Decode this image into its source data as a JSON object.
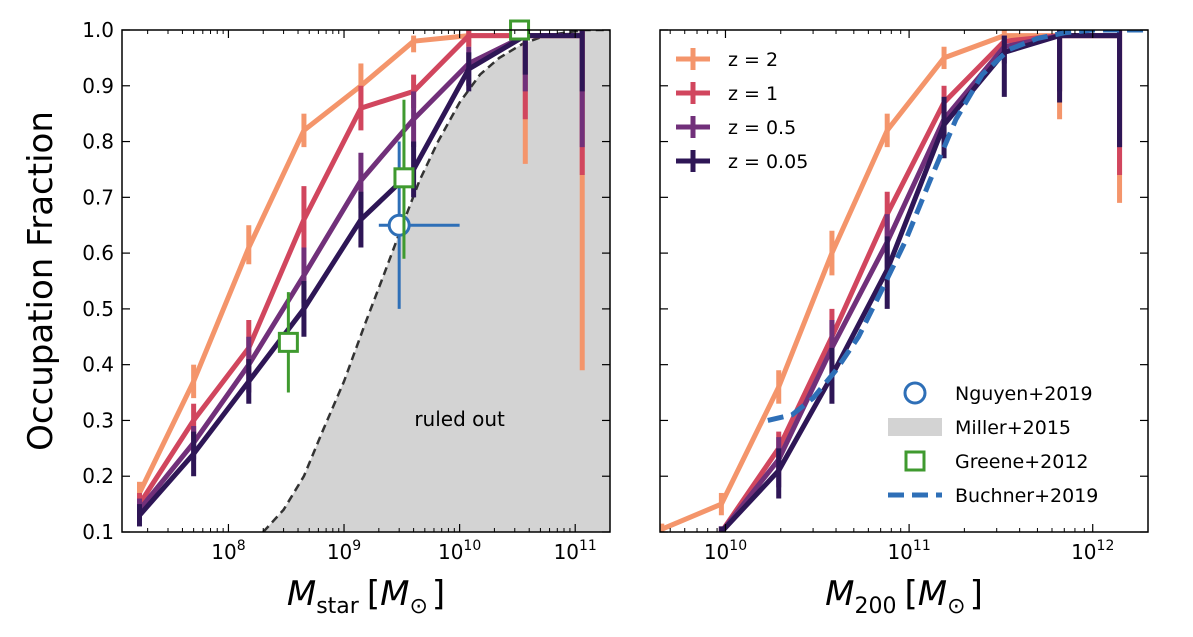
{
  "ylabel": "Occupation Fraction",
  "chart_data": [
    {
      "type": "line",
      "xlabel_main": "M",
      "xlabel_sub": "star",
      "xlabel_unit_open": "[",
      "xlabel_unit_main": "M",
      "xlabel_unit_sub": "⊙",
      "xlabel_unit_close": "]",
      "xscale": "log",
      "xlim": [
        12000000.0,
        200000000000.0
      ],
      "ylim": [
        0.1,
        1.0
      ],
      "x_tick_labels": [
        {
          "value": 100000000.0,
          "base": "10",
          "exp": "8"
        },
        {
          "value": 1000000000.0,
          "base": "10",
          "exp": "9"
        },
        {
          "value": 10000000000.0,
          "base": "10",
          "exp": "10"
        },
        {
          "value": 100000000000.0,
          "base": "10",
          "exp": "11"
        }
      ],
      "y_ticks": [
        0.1,
        0.2,
        0.3,
        0.4,
        0.5,
        0.6,
        0.7,
        0.8,
        0.9,
        1.0
      ],
      "y_tick_labels": [
        "0.1",
        "0.2",
        "0.3",
        "0.4",
        "0.5",
        "0.6",
        "0.7",
        "0.8",
        "0.9",
        "1.0"
      ],
      "series": [
        {
          "name": "z = 2",
          "color": "#f4956b",
          "x": [
            17000000.0,
            50000000.0,
            150000000.0,
            450000000.0,
            1400000000.0,
            4000000000.0,
            12000000000.0,
            37000000000.0,
            115000000000.0
          ],
          "y": [
            0.17,
            0.37,
            0.61,
            0.82,
            0.9,
            0.98,
            0.99,
            0.99,
            0.99
          ],
          "err_lo": [
            0.02,
            0.03,
            0.03,
            0.03,
            0.03,
            0.02,
            0.02,
            0.23,
            0.6
          ],
          "err_hi": [
            0.02,
            0.03,
            0.04,
            0.03,
            0.04,
            0.01,
            0.01,
            0.01,
            0.01
          ]
        },
        {
          "name": "z = 1",
          "color": "#d1465e",
          "x": [
            17000000.0,
            50000000.0,
            150000000.0,
            450000000.0,
            1400000000.0,
            4000000000.0,
            12000000000.0,
            37000000000.0,
            115000000000.0
          ],
          "y": [
            0.15,
            0.3,
            0.43,
            0.66,
            0.86,
            0.89,
            0.99,
            0.99,
            0.99
          ],
          "err_lo": [
            0.02,
            0.03,
            0.05,
            0.05,
            0.04,
            0.03,
            0.02,
            0.15,
            0.25
          ],
          "err_hi": [
            0.02,
            0.03,
            0.05,
            0.06,
            0.04,
            0.03,
            0.01,
            0.01,
            0.01
          ]
        },
        {
          "name": "z = 0.5",
          "color": "#71307a",
          "x": [
            17000000.0,
            50000000.0,
            150000000.0,
            450000000.0,
            1400000000.0,
            4000000000.0,
            12000000000.0,
            37000000000.0,
            115000000000.0
          ],
          "y": [
            0.14,
            0.26,
            0.4,
            0.56,
            0.73,
            0.84,
            0.94,
            0.99,
            0.99
          ],
          "err_lo": [
            0.02,
            0.03,
            0.05,
            0.05,
            0.05,
            0.05,
            0.04,
            0.1,
            0.2
          ],
          "err_hi": [
            0.02,
            0.03,
            0.05,
            0.05,
            0.05,
            0.05,
            0.03,
            0.01,
            0.01
          ]
        },
        {
          "name": "z = 0.05",
          "color": "#2e1656",
          "x": [
            17000000.0,
            50000000.0,
            150000000.0,
            450000000.0,
            1400000000.0,
            4000000000.0,
            12000000000.0,
            37000000000.0,
            115000000000.0
          ],
          "y": [
            0.13,
            0.24,
            0.37,
            0.5,
            0.66,
            0.75,
            0.93,
            0.99,
            0.99
          ],
          "err_lo": [
            0.02,
            0.04,
            0.04,
            0.05,
            0.05,
            0.05,
            0.04,
            0.07,
            0.1
          ],
          "err_hi": [
            0.02,
            0.04,
            0.04,
            0.05,
            0.05,
            0.05,
            0.03,
            0.01,
            0.01
          ]
        }
      ],
      "shaded_region": {
        "name": "Miller+2015",
        "color": "#d3d3d3",
        "boundary_color": "#333333",
        "x": [
          200000000.0,
          300000000.0,
          450000000.0,
          650000000.0,
          1000000000.0,
          1500000000.0,
          2200000000.0,
          3200000000.0,
          4500000000.0,
          6500000000.0,
          10000000000.0,
          15000000000.0,
          22000000000.0,
          35000000000.0,
          55000000000.0,
          80000000000.0,
          120000000000.0,
          200000000000.0
        ],
        "y": [
          0.1,
          0.14,
          0.2,
          0.28,
          0.37,
          0.47,
          0.56,
          0.65,
          0.73,
          0.8,
          0.87,
          0.92,
          0.95,
          0.975,
          0.99,
          0.995,
          1.0,
          1.0
        ]
      },
      "nguyen": {
        "name": "Nguyen+2019",
        "color": "#2e6fb7",
        "x": 3000000000.0,
        "y": 0.65,
        "xerr_lo": 2000000000.0,
        "xerr_hi": 10000000000.0,
        "yerr_lo": 0.5,
        "yerr_hi": 0.8
      },
      "greene": {
        "name": "Greene+2012",
        "color": "#3f9a2f",
        "points": [
          {
            "x": 330000000.0,
            "y": 0.44,
            "ylo": 0.35,
            "yhi": 0.53
          },
          {
            "x": 3300000000.0,
            "y": 0.735,
            "ylo": 0.59,
            "yhi": 0.875
          },
          {
            "x": 33000000000.0,
            "y": 1.0,
            "ylo": 0.99,
            "yhi": 1.0
          }
        ]
      },
      "annotations": [
        {
          "text": "ruled out",
          "x": 10000000000.0,
          "y": 0.29
        }
      ]
    },
    {
      "type": "line",
      "xlabel_main": "M",
      "xlabel_sub": "200",
      "xlabel_unit_open": "[",
      "xlabel_unit_main": "M",
      "xlabel_unit_sub": "⊙",
      "xlabel_unit_close": "]",
      "xscale": "log",
      "xlim": [
        4400000000.0,
        2000000000000.0
      ],
      "ylim": [
        0.1,
        1.0
      ],
      "x_tick_labels": [
        {
          "value": 10000000000.0,
          "base": "10",
          "exp": "10"
        },
        {
          "value": 100000000000.0,
          "base": "10",
          "exp": "11"
        },
        {
          "value": 1000000000000.0,
          "base": "10",
          "exp": "12"
        }
      ],
      "y_ticks": [
        0.1,
        0.2,
        0.3,
        0.4,
        0.5,
        0.6,
        0.7,
        0.8,
        0.9,
        1.0
      ],
      "series": [
        {
          "name": "z = 2",
          "color": "#f4956b",
          "x": [
            4500000000.0,
            9500000000.0,
            19500000000.0,
            38000000000.0,
            76000000000.0,
            155000000000.0,
            330000000000.0,
            660000000000.0,
            1400000000000.0
          ],
          "y": [
            0.105,
            0.15,
            0.36,
            0.6,
            0.82,
            0.95,
            0.99,
            0.99,
            0.99
          ],
          "err_lo": [
            0.01,
            0.02,
            0.03,
            0.04,
            0.03,
            0.02,
            0.01,
            0.15,
            0.3
          ],
          "err_hi": [
            0.01,
            0.02,
            0.03,
            0.04,
            0.03,
            0.02,
            0.01,
            0.01,
            0.01
          ]
        },
        {
          "name": "z = 1",
          "color": "#d1465e",
          "x": [
            9500000000.0,
            19500000000.0,
            38000000000.0,
            76000000000.0,
            155000000000.0,
            330000000000.0,
            660000000000.0,
            1400000000000.0
          ],
          "y": [
            0.1,
            0.25,
            0.45,
            0.67,
            0.87,
            0.98,
            0.99,
            0.99
          ],
          "err_lo": [
            0.01,
            0.04,
            0.05,
            0.04,
            0.04,
            0.02,
            0.1,
            0.25
          ],
          "err_hi": [
            0.01,
            0.03,
            0.05,
            0.04,
            0.03,
            0.01,
            0.01,
            0.01
          ]
        },
        {
          "name": "z = 0.5",
          "color": "#71307a",
          "x": [
            9500000000.0,
            19500000000.0,
            38000000000.0,
            76000000000.0,
            155000000000.0,
            330000000000.0,
            660000000000.0,
            1400000000000.0
          ],
          "y": [
            0.1,
            0.23,
            0.43,
            0.62,
            0.84,
            0.97,
            0.99,
            0.99
          ],
          "err_lo": [
            0.01,
            0.05,
            0.05,
            0.05,
            0.05,
            0.03,
            0.1,
            0.2
          ],
          "err_hi": [
            0.01,
            0.04,
            0.05,
            0.05,
            0.04,
            0.02,
            0.01,
            0.01
          ]
        },
        {
          "name": "z = 0.05",
          "color": "#2e1656",
          "x": [
            9500000000.0,
            19500000000.0,
            38000000000.0,
            76000000000.0,
            155000000000.0,
            330000000000.0,
            660000000000.0,
            1400000000000.0
          ],
          "y": [
            0.1,
            0.21,
            0.38,
            0.57,
            0.83,
            0.96,
            0.99,
            0.99
          ],
          "err_lo": [
            0.01,
            0.05,
            0.05,
            0.07,
            0.06,
            0.08,
            0.12,
            0.2
          ],
          "err_hi": [
            0.01,
            0.04,
            0.05,
            0.06,
            0.05,
            0.03,
            0.01,
            0.01
          ]
        }
      ],
      "buchner": {
        "name": "Buchner+2019",
        "color": "#2e6fb7",
        "x": [
          17000000000.0,
          23000000000.0,
          30000000000.0,
          40000000000.0,
          53000000000.0,
          70000000000.0,
          95000000000.0,
          130000000000.0,
          180000000000.0,
          250000000000.0,
          350000000000.0,
          500000000000.0,
          700000000000.0,
          1000000000000.0,
          1400000000000.0,
          2000000000000.0
        ],
        "y": [
          0.3,
          0.31,
          0.34,
          0.39,
          0.45,
          0.53,
          0.62,
          0.73,
          0.84,
          0.92,
          0.965,
          0.985,
          0.995,
          1.0,
          1.0,
          1.0
        ]
      }
    }
  ],
  "legend_left": {
    "placement": "upper left",
    "entries": [
      {
        "label": "z = 2",
        "color": "#f4956b"
      },
      {
        "label": "z = 1",
        "color": "#d1465e"
      },
      {
        "label": "z = 0.5",
        "color": "#71307a"
      },
      {
        "label": "z = 0.05",
        "color": "#2e1656"
      }
    ]
  },
  "legend_right": {
    "placement": "lower right",
    "entries": [
      {
        "label": "Nguyen+2019",
        "kind": "circle",
        "color": "#2e6fb7"
      },
      {
        "label": "Miller+2015",
        "kind": "patch",
        "color": "#d3d3d3"
      },
      {
        "label": "Greene+2012",
        "kind": "square",
        "color": "#3f9a2f"
      },
      {
        "label": "Buchner+2019",
        "kind": "dash",
        "color": "#2e6fb7"
      }
    ]
  }
}
